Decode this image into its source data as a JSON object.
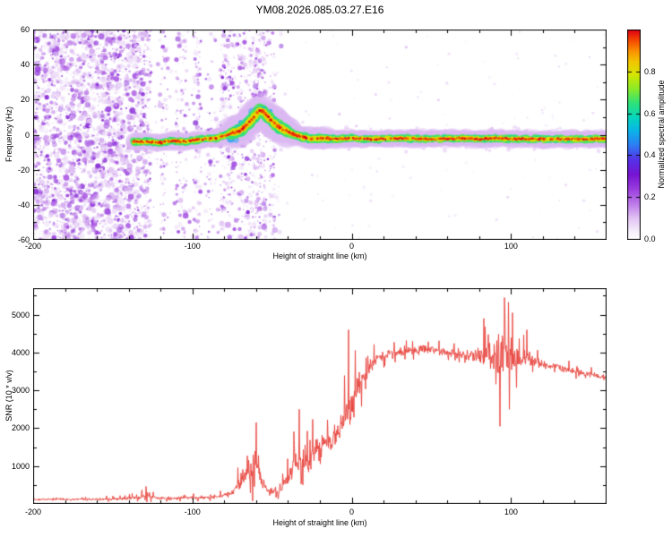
{
  "chart_data": [
    {
      "type": "heatmap",
      "title": "YM08.2026.085.03.27.E16",
      "xlabel": "Height of straight line (km)",
      "ylabel": "Frequency (Hz)",
      "xlim": [
        -200,
        160
      ],
      "ylim": [
        -60,
        60
      ],
      "xticks": [
        -200,
        -100,
        0,
        100
      ],
      "yticks": [
        -60,
        -40,
        -20,
        0,
        20,
        40,
        60
      ],
      "colorbar": {
        "label": "Normalized spectral amplitude",
        "range": [
          0,
          1
        ],
        "ticks": [
          0,
          0.2,
          0.4,
          0.6,
          0.8
        ],
        "stops": [
          [
            0.0,
            "#ffffff"
          ],
          [
            0.04,
            "#f6eefb"
          ],
          [
            0.1,
            "#e2c4f4"
          ],
          [
            0.17,
            "#bd7ae9"
          ],
          [
            0.24,
            "#9a3ede"
          ],
          [
            0.31,
            "#7714d2"
          ],
          [
            0.38,
            "#5533e8"
          ],
          [
            0.45,
            "#2e7df4"
          ],
          [
            0.52,
            "#0ab6e8"
          ],
          [
            0.58,
            "#06d6c0"
          ],
          [
            0.65,
            "#2ee27a"
          ],
          [
            0.72,
            "#8ceb28"
          ],
          [
            0.79,
            "#d8e600"
          ],
          [
            0.85,
            "#f4c400"
          ],
          [
            0.9,
            "#fa9000"
          ],
          [
            0.95,
            "#f54a00"
          ],
          [
            1.0,
            "#e00018"
          ]
        ]
      },
      "ridge": [
        [
          -136,
          -4
        ],
        [
          -128,
          -4
        ],
        [
          -120,
          -4.5
        ],
        [
          -112,
          -3.5
        ],
        [
          -105,
          -4
        ],
        [
          -98,
          -3
        ],
        [
          -92,
          -2.5
        ],
        [
          -86,
          -2
        ],
        [
          -80,
          -0.5
        ],
        [
          -75,
          1
        ],
        [
          -70,
          2.5
        ],
        [
          -66,
          5.5
        ],
        [
          -62,
          9.5
        ],
        [
          -58,
          14
        ],
        [
          -55,
          13
        ],
        [
          -52,
          9.5
        ],
        [
          -48,
          6
        ],
        [
          -45,
          4
        ],
        [
          -42,
          2.5
        ],
        [
          -38,
          1
        ],
        [
          -34,
          -0.5
        ],
        [
          -30,
          -1.5
        ],
        [
          -24,
          -2.5
        ],
        [
          -18,
          -2
        ],
        [
          -10,
          -2.5
        ],
        [
          0,
          -2
        ],
        [
          15,
          -2.5
        ],
        [
          30,
          -2
        ],
        [
          50,
          -2.5
        ],
        [
          70,
          -2
        ],
        [
          80,
          -2.5
        ],
        [
          90,
          -2
        ],
        [
          100,
          -2.5
        ],
        [
          120,
          -2.5
        ],
        [
          140,
          -2.5
        ],
        [
          160,
          -2.5
        ]
      ],
      "noise": {
        "dense": {
          "x0": -200,
          "x1": -132,
          "n": 2600
        },
        "mid": {
          "x0": -132,
          "x1": -44,
          "n": 240
        },
        "sparse": {
          "x0": -44,
          "x1": 160,
          "n": 130
        },
        "columns": [
          {
            "x": -129,
            "w": 6,
            "n": 170
          },
          {
            "x": -118,
            "w": 5,
            "n": 60
          },
          {
            "x": -107,
            "w": 7,
            "n": 100
          },
          {
            "x": -97,
            "w": 5,
            "n": 80
          },
          {
            "x": -88,
            "w": 6,
            "n": 50
          },
          {
            "x": -78,
            "w": 9,
            "n": 190
          },
          {
            "x": -68,
            "w": 7,
            "n": 120
          },
          {
            "x": -59,
            "w": 11,
            "n": 300
          },
          {
            "x": -50,
            "w": 4,
            "n": 70
          }
        ]
      }
    },
    {
      "type": "line",
      "xlabel": "Height of straight line (km)",
      "ylabel": "SNR (10 * v/v)",
      "xlim": [
        -200,
        160
      ],
      "ylim": [
        0,
        5700
      ],
      "xticks": [
        -200,
        -100,
        0,
        100
      ],
      "yticks": [
        1000,
        2000,
        3000,
        4000,
        5000
      ],
      "line_color": "#e8413a",
      "points": [
        [
          -200,
          120,
          70
        ],
        [
          -170,
          120,
          70
        ],
        [
          -145,
          130,
          80
        ],
        [
          -133,
          170,
          140
        ],
        [
          -128,
          230,
          220
        ],
        [
          -122,
          150,
          90
        ],
        [
          -110,
          160,
          90
        ],
        [
          -95,
          170,
          100
        ],
        [
          -85,
          190,
          120
        ],
        [
          -76,
          260,
          250
        ],
        [
          -70,
          550,
          500
        ],
        [
          -65,
          900,
          800
        ],
        [
          -60,
          1000,
          900
        ],
        [
          -56,
          600,
          500
        ],
        [
          -52,
          330,
          220
        ],
        [
          -47,
          300,
          250
        ],
        [
          -43,
          500,
          450
        ],
        [
          -39,
          800,
          650
        ],
        [
          -35,
          1000,
          850
        ],
        [
          -31,
          1250,
          900
        ],
        [
          -27,
          1100,
          750
        ],
        [
          -23,
          1400,
          800
        ],
        [
          -19,
          1500,
          800
        ],
        [
          -15,
          1650,
          750
        ],
        [
          -11,
          1800,
          800
        ],
        [
          -7,
          2000,
          900
        ],
        [
          -3,
          2300,
          1100
        ],
        [
          0,
          2700,
          1100
        ],
        [
          4,
          3100,
          800
        ],
        [
          8,
          3400,
          600
        ],
        [
          12,
          3650,
          450
        ],
        [
          16,
          3850,
          350
        ],
        [
          22,
          3950,
          280
        ],
        [
          30,
          4000,
          260
        ],
        [
          40,
          4050,
          270
        ],
        [
          50,
          4100,
          300
        ],
        [
          58,
          4000,
          280
        ],
        [
          66,
          3950,
          300
        ],
        [
          74,
          3900,
          350
        ],
        [
          80,
          3950,
          500
        ],
        [
          86,
          3950,
          800
        ],
        [
          92,
          3900,
          1300
        ],
        [
          97,
          4000,
          1400
        ],
        [
          102,
          3850,
          900
        ],
        [
          107,
          3900,
          600
        ],
        [
          112,
          3800,
          450
        ],
        [
          118,
          3700,
          300
        ],
        [
          126,
          3650,
          240
        ],
        [
          134,
          3550,
          210
        ],
        [
          142,
          3480,
          190
        ],
        [
          150,
          3420,
          170
        ],
        [
          160,
          3330,
          160
        ]
      ],
      "spikes": [
        {
          "x": -129,
          "v": 460
        },
        {
          "x": -60,
          "v": 2150
        },
        {
          "x": -33,
          "v": 2500
        },
        {
          "x": -2,
          "v": 4600
        },
        {
          "x": 83,
          "v": 4900
        },
        {
          "x": 93,
          "v": 2050
        },
        {
          "x": 96,
          "v": 5450
        },
        {
          "x": 99,
          "v": 2500
        },
        {
          "x": 101,
          "v": 5050
        },
        {
          "x": 110,
          "v": 4600
        }
      ]
    }
  ]
}
